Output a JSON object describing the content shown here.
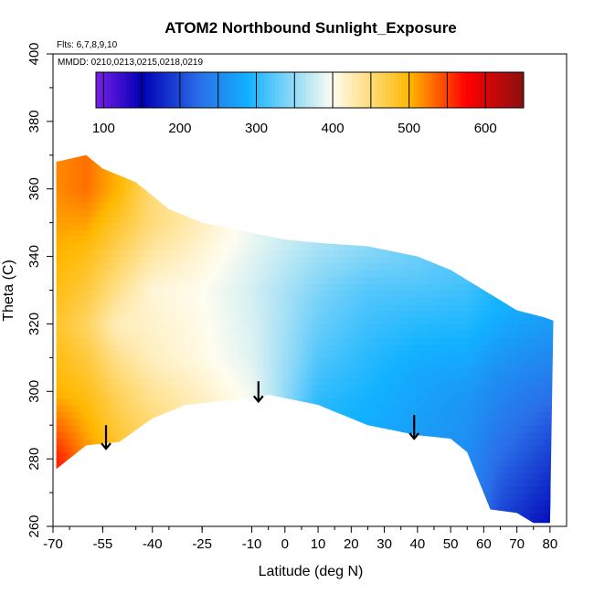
{
  "chart_data": {
    "type": "heatmap",
    "title": "ATOM2 Northbound Sunlight_Exposure",
    "annotations": [
      "Flts: 6,7,8,9,10",
      "MMDD: 0210,0213,0215,0218,0219"
    ],
    "xlabel": "Latitude (deg N)",
    "ylabel": "Theta (C)",
    "xlim": [
      -70,
      85
    ],
    "ylim": [
      260,
      400
    ],
    "x_ticks": [
      -70,
      -55,
      -40,
      -25,
      -10,
      0,
      10,
      20,
      30,
      40,
      50,
      60,
      70,
      80
    ],
    "y_ticks": [
      260,
      280,
      300,
      320,
      340,
      360,
      380,
      400
    ],
    "colorbar": {
      "range": [
        90,
        650
      ],
      "ticks": [
        100,
        200,
        300,
        400,
        500,
        600
      ],
      "stops": [
        {
          "value": 90,
          "color": "#7b1fe8"
        },
        {
          "value": 150,
          "color": "#0000b4"
        },
        {
          "value": 225,
          "color": "#2a6ee8"
        },
        {
          "value": 290,
          "color": "#12b2ff"
        },
        {
          "value": 400,
          "color": "#fffdf0"
        },
        {
          "value": 500,
          "color": "#ffb800"
        },
        {
          "value": 575,
          "color": "#ff0000"
        },
        {
          "value": 650,
          "color": "#8a1010"
        }
      ]
    },
    "domain_top": [
      [
        -69,
        368
      ],
      [
        -60,
        370
      ],
      [
        -55,
        366
      ],
      [
        -45,
        362
      ],
      [
        -35,
        354
      ],
      [
        -25,
        350
      ],
      [
        -10,
        347
      ],
      [
        0,
        345
      ],
      [
        10,
        344
      ],
      [
        25,
        343
      ],
      [
        40,
        340
      ],
      [
        50,
        336
      ],
      [
        60,
        330
      ],
      [
        70,
        324
      ],
      [
        78,
        322
      ],
      [
        81,
        321
      ]
    ],
    "domain_bottom": [
      [
        -69,
        277
      ],
      [
        -60,
        284
      ],
      [
        -50,
        285
      ],
      [
        -40,
        292
      ],
      [
        -30,
        296
      ],
      [
        -20,
        297
      ],
      [
        -10,
        298
      ],
      [
        -5,
        299
      ],
      [
        0,
        298
      ],
      [
        5,
        297
      ],
      [
        10,
        296
      ],
      [
        15,
        294
      ],
      [
        25,
        290
      ],
      [
        40,
        287
      ],
      [
        50,
        286
      ],
      [
        55,
        282
      ],
      [
        62,
        265
      ],
      [
        70,
        264
      ],
      [
        75,
        261
      ],
      [
        80,
        261
      ]
    ],
    "value_field": [
      {
        "lat": -68,
        "theta": [
          [
            280,
            560
          ],
          [
            300,
            500
          ],
          [
            320,
            480
          ],
          [
            340,
            500
          ],
          [
            360,
            520
          ]
        ]
      },
      {
        "lat": -60,
        "theta": [
          [
            280,
            520
          ],
          [
            300,
            490
          ],
          [
            320,
            460
          ],
          [
            340,
            490
          ],
          [
            360,
            530
          ]
        ]
      },
      {
        "lat": -50,
        "theta": [
          [
            285,
            480
          ],
          [
            300,
            460
          ],
          [
            320,
            420
          ],
          [
            340,
            460
          ],
          [
            360,
            500
          ]
        ]
      },
      {
        "lat": -40,
        "theta": [
          [
            292,
            450
          ],
          [
            310,
            420
          ],
          [
            330,
            410
          ],
          [
            350,
            450
          ]
        ]
      },
      {
        "lat": -25,
        "theta": [
          [
            297,
            420
          ],
          [
            310,
            405
          ],
          [
            330,
            400
          ],
          [
            350,
            420
          ]
        ]
      },
      {
        "lat": -10,
        "theta": [
          [
            298,
            395
          ],
          [
            310,
            385
          ],
          [
            330,
            380
          ],
          [
            345,
            390
          ]
        ]
      },
      {
        "lat": 0,
        "theta": [
          [
            298,
            350
          ],
          [
            310,
            355
          ],
          [
            330,
            360
          ],
          [
            344,
            375
          ]
        ]
      },
      {
        "lat": 10,
        "theta": [
          [
            296,
            300
          ],
          [
            310,
            320
          ],
          [
            330,
            340
          ],
          [
            343,
            360
          ]
        ]
      },
      {
        "lat": 25,
        "theta": [
          [
            290,
            285
          ],
          [
            310,
            300
          ],
          [
            330,
            320
          ],
          [
            342,
            345
          ]
        ]
      },
      {
        "lat": 40,
        "theta": [
          [
            287,
            270
          ],
          [
            305,
            280
          ],
          [
            320,
            300
          ],
          [
            338,
            330
          ]
        ]
      },
      {
        "lat": 55,
        "theta": [
          [
            282,
            255
          ],
          [
            300,
            265
          ],
          [
            315,
            290
          ],
          [
            333,
            315
          ]
        ]
      },
      {
        "lat": 65,
        "theta": [
          [
            265,
            200
          ],
          [
            285,
            230
          ],
          [
            305,
            255
          ],
          [
            325,
            290
          ]
        ]
      },
      {
        "lat": 75,
        "theta": [
          [
            261,
            170
          ],
          [
            285,
            210
          ],
          [
            305,
            245
          ],
          [
            322,
            275
          ]
        ]
      },
      {
        "lat": 80,
        "theta": [
          [
            261,
            160
          ],
          [
            285,
            200
          ],
          [
            305,
            240
          ],
          [
            321,
            270
          ]
        ]
      }
    ],
    "arrows": [
      {
        "lat": -54,
        "theta_from": 290,
        "theta_to": 283
      },
      {
        "lat": -8,
        "theta_from": 303,
        "theta_to": 297
      },
      {
        "lat": 39,
        "theta_from": 293,
        "theta_to": 286
      }
    ]
  }
}
